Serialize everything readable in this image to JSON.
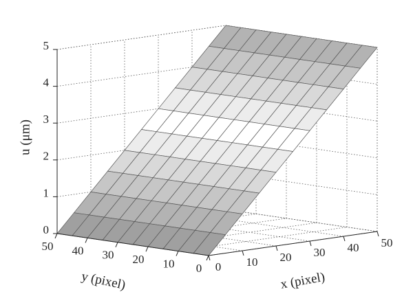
{
  "chart_data": {
    "type": "surface",
    "xlabel": "x (pixel)",
    "ylabel": "y (pixel)",
    "zlabel": "u (μm)",
    "xlim": [
      0,
      50
    ],
    "ylim": [
      0,
      50
    ],
    "zlim": [
      0,
      5
    ],
    "xticks": [
      0,
      10,
      20,
      30,
      40,
      50
    ],
    "yticks": [
      0,
      10,
      20,
      30,
      40,
      50
    ],
    "zticks": [
      0,
      1,
      2,
      3,
      4,
      5
    ],
    "grid": true,
    "x": [
      0,
      5,
      10,
      15,
      20,
      25,
      30,
      35,
      40,
      45,
      50
    ],
    "y": [
      0,
      5,
      10,
      15,
      20,
      25,
      30,
      35,
      40,
      45,
      50
    ],
    "z": [
      [
        0,
        0.5,
        1,
        1.5,
        2,
        2.5,
        3,
        3.5,
        4,
        4.5,
        5
      ],
      [
        0,
        0.5,
        1,
        1.5,
        2,
        2.5,
        3,
        3.5,
        4,
        4.5,
        5
      ],
      [
        0,
        0.5,
        1,
        1.5,
        2,
        2.5,
        3,
        3.5,
        4,
        4.5,
        5
      ],
      [
        0,
        0.5,
        1,
        1.5,
        2,
        2.5,
        3,
        3.5,
        4,
        4.5,
        5
      ],
      [
        0,
        0.5,
        1,
        1.5,
        2,
        2.5,
        3,
        3.5,
        4,
        4.5,
        5
      ],
      [
        0,
        0.5,
        1,
        1.5,
        2,
        2.5,
        3,
        3.5,
        4,
        4.5,
        5
      ],
      [
        0,
        0.5,
        1,
        1.5,
        2,
        2.5,
        3,
        3.5,
        4,
        4.5,
        5
      ],
      [
        0,
        0.5,
        1,
        1.5,
        2,
        2.5,
        3,
        3.5,
        4,
        4.5,
        5
      ],
      [
        0,
        0.5,
        1,
        1.5,
        2,
        2.5,
        3,
        3.5,
        4,
        4.5,
        5
      ],
      [
        0,
        0.5,
        1,
        1.5,
        2,
        2.5,
        3,
        3.5,
        4,
        4.5,
        5
      ],
      [
        0,
        0.5,
        1,
        1.5,
        2,
        2.5,
        3,
        3.5,
        4,
        4.5,
        5
      ]
    ]
  }
}
